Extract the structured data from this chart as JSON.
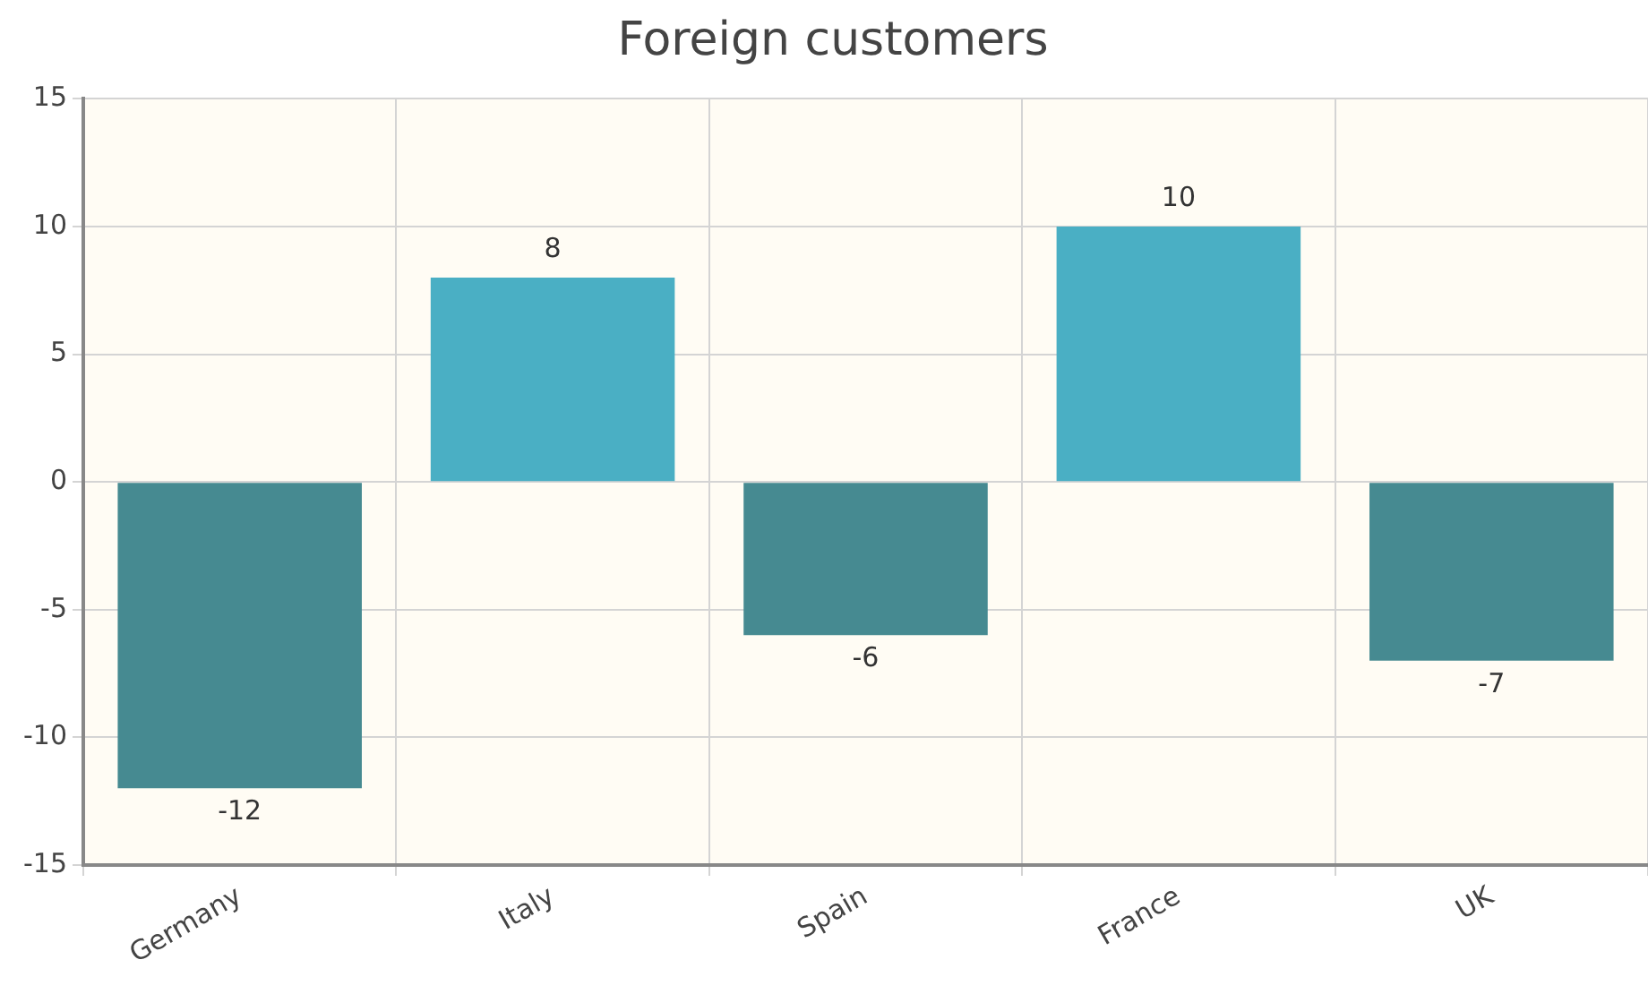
{
  "chart_data": {
    "type": "bar",
    "title": "Foreign customers",
    "categories": [
      "Germany",
      "Italy",
      "Spain",
      "France",
      "UK"
    ],
    "values": [
      -12,
      8,
      -6,
      10,
      -7
    ],
    "colors": [
      "#468a91",
      "#4aafc4",
      "#468a91",
      "#4aafc4",
      "#468a91"
    ],
    "ylim": [
      -15,
      15
    ],
    "yticks": [
      -15,
      -10,
      -5,
      0,
      5,
      10,
      15
    ],
    "grid": true,
    "data_labels": true
  }
}
